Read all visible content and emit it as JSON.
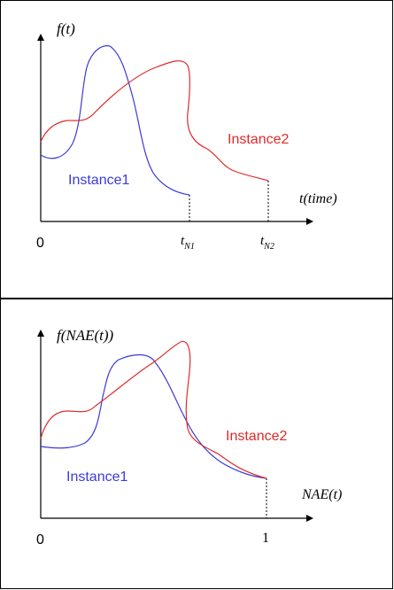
{
  "colors": {
    "instance1": "#3b3bdc",
    "instance2": "#e02a2a",
    "frame": "#000000"
  },
  "top_panel": {
    "y_label": "f(t)",
    "x_label": "t(time)",
    "origin_label": "0",
    "tick_n1": "t",
    "tick_n1_sub": "N1",
    "tick_n2": "t",
    "tick_n2_sub": "N2",
    "instance1_label": "Instance1",
    "instance2_label": "Instance2"
  },
  "bottom_panel": {
    "y_label": "f(NAE(t))",
    "x_label": "NAE(t)",
    "origin_label": "0",
    "tick_end": "1",
    "instance1_label": "Instance1",
    "instance2_label": "Instance2"
  }
}
